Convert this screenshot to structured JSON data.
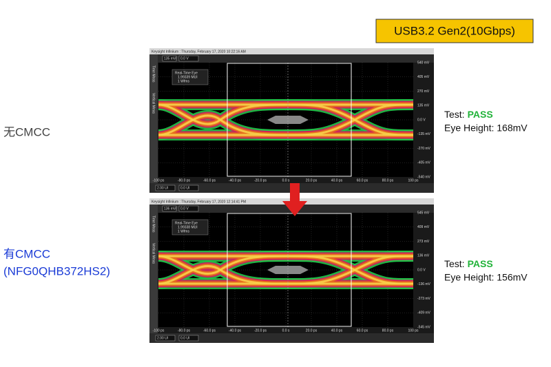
{
  "badge": "USB3.2 Gen2(10Gbps)",
  "panels": [
    {
      "label": [
        "无CMCC"
      ],
      "test_label": "Test:",
      "result": "PASS",
      "eye_height": "Eye Height: 168mV",
      "scope": {
        "title": "Keysight Infiniium : Thursday, February 17, 2020 10:22:16 AM",
        "scale": "135 mV/",
        "offset": "0.0 V",
        "tabs": [
          "Time Meas",
          "Vertical Meas"
        ],
        "info": [
          "Real-Time Eye",
          "1.99339 MUI",
          "1 Wfms"
        ],
        "y_labels": [
          "540 mV",
          "405 mV",
          "270 mV",
          "135 mV",
          "0.0 V",
          "-135 mV",
          "-270 mV",
          "-405 mV",
          "-540 mV"
        ],
        "x_labels": [
          "-100 ps",
          "-80.0 ps",
          "-60.0 ps",
          "-40.0 ps",
          "-20.0 ps",
          "0.0 s",
          "20.0 ps",
          "40.0 ps",
          "60.0 ps",
          "80.0 ps",
          "100 ps"
        ],
        "timebase": "2.00 UI",
        "position": "0.0 UI"
      }
    },
    {
      "label": [
        "有CMCC",
        "(NFG0QHB372HS2)"
      ],
      "test_label": "Test:",
      "result": "PASS",
      "eye_height": "Eye Height: 156mV",
      "scope": {
        "title": "Keysight Infiniium : Thursday, February 17, 2020 12:14:41 PM",
        "scale": "136 mV/",
        "offset": "0.0 V",
        "tabs": [
          "Time Meas",
          "Vertical Meas"
        ],
        "info": [
          "Real-Time Eye",
          "1.99338 MUI",
          "1 Wfms"
        ],
        "y_labels": [
          "545 mV",
          "409 mV",
          "273 mV",
          "136 mV",
          "0.0 V",
          "-136 mV",
          "-273 mV",
          "-409 mV",
          "-545 mV"
        ],
        "x_labels": [
          "-100 ps",
          "-80.0 ps",
          "-60.0 ps",
          "-40.0 ps",
          "-20.0 ps",
          "0.0 s",
          "20.0 ps",
          "40.0 ps",
          "60.0 ps",
          "80.0 ps",
          "100 ps"
        ],
        "timebase": "2.00 UI",
        "position": "0.0 UI"
      }
    }
  ]
}
